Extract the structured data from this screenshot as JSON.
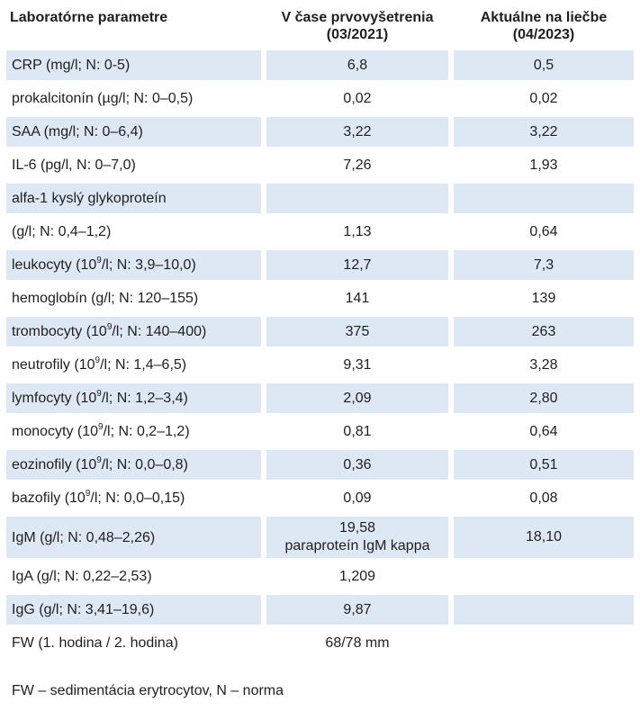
{
  "table": {
    "headers": {
      "param": "Laboratórne parametre",
      "initial_line1": "V čase prvovyšetrenia",
      "initial_line2": "(03/2021)",
      "current_line1": "Aktuálne na liečbe",
      "current_line2": "(04/2023)"
    },
    "rows": [
      {
        "pre": "CRP (mg/l; N: 0-5)",
        "sup": "",
        "post": "",
        "v1": "6,8",
        "v1b": "",
        "v2": "0,5",
        "shaded": true
      },
      {
        "pre": "prokalcitonín (µg/l; N: 0–0,5)",
        "sup": "",
        "post": "",
        "v1": "0,02",
        "v1b": "",
        "v2": "0,02",
        "shaded": false
      },
      {
        "pre": "SAA (mg/l; N: 0–6,4)",
        "sup": "",
        "post": "",
        "v1": "3,22",
        "v1b": "",
        "v2": "3,22",
        "shaded": true
      },
      {
        "pre": "IL-6 (pg/l, N: 0–7,0)",
        "sup": "",
        "post": "",
        "v1": "7,26",
        "v1b": "",
        "v2": "1,93",
        "shaded": false
      },
      {
        "pre": "alfa-1 kyslý glykoproteín",
        "sup": "",
        "post": "",
        "v1": "",
        "v1b": "",
        "v2": "",
        "shaded": true
      },
      {
        "pre": "(g/l; N: 0,4–1,2)",
        "sup": "",
        "post": "",
        "v1": "1,13",
        "v1b": "",
        "v2": "0,64",
        "shaded": false
      },
      {
        "pre": "leukocyty (10",
        "sup": "9",
        "post": "/l; N: 3,9–10,0)",
        "v1": "12,7",
        "v1b": "",
        "v2": "7,3",
        "shaded": true
      },
      {
        "pre": "hemoglobín (g/l; N: 120–155)",
        "sup": "",
        "post": "",
        "v1": "141",
        "v1b": "",
        "v2": "139",
        "shaded": false
      },
      {
        "pre": "trombocyty (10",
        "sup": "9",
        "post": "/l; N: 140–400)",
        "v1": "375",
        "v1b": "",
        "v2": "263",
        "shaded": true
      },
      {
        "pre": "neutrofily (10",
        "sup": "9",
        "post": "/l; N: 1,4–6,5)",
        "v1": "9,31",
        "v1b": "",
        "v2": "3,28",
        "shaded": false
      },
      {
        "pre": "lymfocyty (10",
        "sup": "9",
        "post": "/l; N: 1,2–3,4)",
        "v1": "2,09",
        "v1b": "",
        "v2": "2,80",
        "shaded": true
      },
      {
        "pre": "monocyty (10",
        "sup": "9",
        "post": "/l; N: 0,2–1,2)",
        "v1": "0,81",
        "v1b": "",
        "v2": "0,64",
        "shaded": false
      },
      {
        "pre": "eozinofily (10",
        "sup": "9",
        "post": "/l; N: 0,0–0,8)",
        "v1": "0,36",
        "v1b": "",
        "v2": "0,51",
        "shaded": true
      },
      {
        "pre": "bazofily (10",
        "sup": "9",
        "post": "/l; N: 0,0–0,15)",
        "v1": "0,09",
        "v1b": "",
        "v2": "0,08",
        "shaded": false
      },
      {
        "pre": "IgM (g/l; N: 0,48–2,26)",
        "sup": "",
        "post": "",
        "v1": "19,58",
        "v1b": "paraproteín IgM kappa",
        "v2": "18,10",
        "shaded": true
      },
      {
        "pre": "IgA (g/l; N: 0,22–2,53)",
        "sup": "",
        "post": "",
        "v1": "1,209",
        "v1b": "",
        "v2": "",
        "shaded": false
      },
      {
        "pre": "IgG (g/l; N: 3,41–19,6)",
        "sup": "",
        "post": "",
        "v1": "9,87",
        "v1b": "",
        "v2": "",
        "shaded": true
      },
      {
        "pre": "FW (1. hodina / 2. hodina)",
        "sup": "",
        "post": "",
        "v1": "68/78 mm",
        "v1b": "",
        "v2": "",
        "shaded": false
      }
    ]
  },
  "footnote": "FW – sedimentácia erytrocytov, N – norma",
  "colors": {
    "row_shade": "#dde8f4",
    "text": "#1f1f1f"
  }
}
